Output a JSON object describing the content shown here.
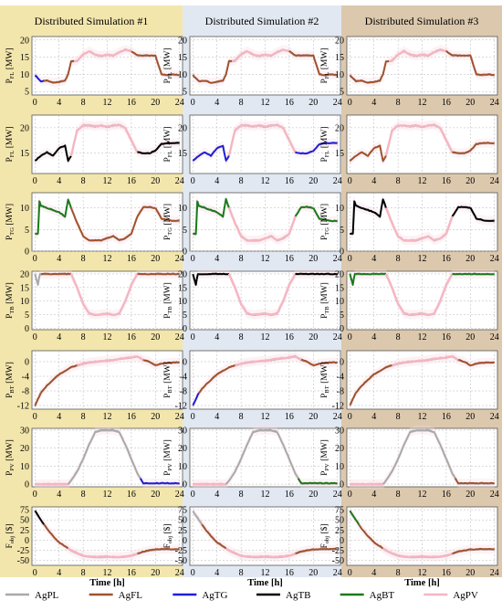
{
  "chart_data": {
    "type": "line",
    "columns": [
      {
        "title": "Distributed Simulation #1",
        "background": "#f3e6ad"
      },
      {
        "title": "Distributed Simulation #2",
        "background": "#e2e8f1"
      },
      {
        "title": "Distributed Simulation #3",
        "background": "#dcc8ad"
      }
    ],
    "xlabel": "Time [h]",
    "xticks": [
      0,
      4,
      8,
      12,
      16,
      20,
      24
    ],
    "xlim": [
      -0.5,
      24.5
    ],
    "grid": true,
    "legend_position": "bottom",
    "legend": [
      {
        "name": "AgPL",
        "color": "#a9a9a9"
      },
      {
        "name": "AgFL",
        "color": "#a0522d"
      },
      {
        "name": "AgTG",
        "color": "#1f1fd6"
      },
      {
        "name": "AgTB",
        "color": "#000000"
      },
      {
        "name": "AgBT",
        "color": "#1a7a1a"
      },
      {
        "name": "AgPV",
        "color": "#f4b6c2"
      }
    ],
    "rows": [
      {
        "ylabel_main": "P",
        "ylabel_sub": "FL",
        "ylabel_unit": " [MW]",
        "ylim": [
          4,
          21
        ],
        "yticks": [
          5,
          10,
          15,
          20
        ],
        "x": [
          0,
          1,
          2,
          3,
          4,
          5,
          5.5,
          6,
          7,
          8,
          9,
          10,
          11,
          12,
          13,
          14,
          15,
          16,
          17,
          18,
          19,
          20,
          21,
          22,
          23,
          24
        ],
        "consensus": [
          9.8,
          8.0,
          8.2,
          7.6,
          7.8,
          8.2,
          10.0,
          13.8,
          14.0,
          15.8,
          16.8,
          15.8,
          15.4,
          15.8,
          15.5,
          16.5,
          17.2,
          16.8,
          15.5,
          15.5,
          15.5,
          15.5,
          10.0,
          9.8,
          10.0,
          9.8
        ],
        "segments": [
          {
            "agents": [
              "AgTG",
              "AgFL",
              "AgFL"
            ],
            "x0": 0,
            "x1": 1.5
          },
          {
            "agents": [
              "AgFL",
              "AgFL",
              "AgFL"
            ],
            "x0": 1.5,
            "x1": 6.5
          },
          {
            "agents": [
              "AgPV",
              "AgPV",
              "AgPV"
            ],
            "x0": 6.5,
            "x1": 16
          },
          {
            "agents": [
              "AgFL",
              "AgFL",
              "AgFL"
            ],
            "x0": 16,
            "x1": 24
          }
        ]
      },
      {
        "ylabel_main": "P",
        "ylabel_sub": "FL",
        "ylabel_unit": " [MW]",
        "ylim": [
          11,
          22.5
        ],
        "yticks": [
          15,
          20
        ],
        "x": [
          0,
          1,
          2,
          3,
          4,
          5,
          5.5,
          6,
          7,
          8,
          9,
          10,
          11,
          12,
          13,
          14,
          15,
          16,
          17,
          18,
          19,
          20,
          21,
          22,
          23,
          24
        ],
        "consensus": [
          13.5,
          14.5,
          15.2,
          14.5,
          16.0,
          16.5,
          13.5,
          14.5,
          19.5,
          20.5,
          20.5,
          20.3,
          20.5,
          20.2,
          20.5,
          20.6,
          20.0,
          17.5,
          15.2,
          15.0,
          15.0,
          15.5,
          16.8,
          17.0,
          17.0,
          17.0
        ],
        "segments": [
          {
            "agents": [
              "AgTB",
              "AgTG",
              "AgFL"
            ],
            "x0": 0,
            "x1": 6
          },
          {
            "agents": [
              "AgPV",
              "AgPV",
              "AgPV"
            ],
            "x0": 6,
            "x1": 17
          },
          {
            "agents": [
              "AgTB",
              "AgTG",
              "AgFL"
            ],
            "x0": 17,
            "x1": 24
          }
        ]
      },
      {
        "ylabel_main": "P",
        "ylabel_sub": "TG",
        "ylabel_unit": " [MW]",
        "ylim": [
          0,
          13.5
        ],
        "yticks": [
          0,
          5,
          10
        ],
        "x": [
          0,
          0.5,
          0.6,
          1,
          2,
          3,
          4,
          5,
          5.5,
          6,
          7,
          8,
          9,
          10,
          11,
          12,
          13,
          14,
          15,
          16,
          17,
          18,
          19,
          20,
          21,
          22,
          23,
          24
        ],
        "consensus": [
          4.0,
          4.0,
          12.0,
          10.5,
          10.0,
          9.5,
          9.0,
          8.0,
          12.0,
          10.0,
          6.5,
          3.5,
          2.5,
          2.5,
          2.5,
          3.0,
          3.5,
          2.5,
          3.0,
          4.0,
          8.0,
          10.2,
          10.2,
          10.0,
          7.5,
          7.2,
          7.0,
          7.0
        ],
        "segments": [
          {
            "agents": [
              "AgBT",
              "AgBT",
              "AgTB"
            ],
            "x0": 0,
            "x1": 6
          },
          {
            "agents": [
              "AgFL",
              "AgPV",
              "AgPV"
            ],
            "x0": 6,
            "x1": 17
          },
          {
            "agents": [
              "AgFL",
              "AgBT",
              "AgTB"
            ],
            "x0": 17,
            "x1": 20
          },
          {
            "agents": [
              "AgFL",
              "AgBT",
              "AgTB"
            ],
            "x0": 20,
            "x1": 24
          }
        ]
      },
      {
        "ylabel_main": "P",
        "ylabel_sub": "TB",
        "ylabel_unit": " [MW]",
        "ylim": [
          -0.5,
          21
        ],
        "yticks": [
          0,
          5,
          10,
          15,
          20
        ],
        "x": [
          0,
          0.5,
          0.8,
          1,
          2,
          3,
          4,
          5,
          6,
          7,
          8,
          9,
          10,
          11,
          12,
          13,
          14,
          15,
          16,
          17,
          18,
          19,
          20,
          21,
          22,
          23,
          24
        ],
        "consensus": [
          20.0,
          16.0,
          20.0,
          20.0,
          20.0,
          20.0,
          20.0,
          20.0,
          20.0,
          15.0,
          9.0,
          5.5,
          5.0,
          5.2,
          5.5,
          5.0,
          5.5,
          10.0,
          16.0,
          20.0,
          20.0,
          20.0,
          20.0,
          20.0,
          20.0,
          20.0,
          20.0
        ],
        "segments": [
          {
            "agents": [
              "AgPL",
              "AgTB",
              "AgBT"
            ],
            "x0": 0,
            "x1": 1
          },
          {
            "agents": [
              "AgFL",
              "AgTB",
              "AgBT"
            ],
            "x0": 1,
            "x1": 6
          },
          {
            "agents": [
              "AgPV",
              "AgPV",
              "AgPV"
            ],
            "x0": 6,
            "x1": 17
          },
          {
            "agents": [
              "AgFL",
              "AgTB",
              "AgBT"
            ],
            "x0": 17,
            "x1": 24
          }
        ]
      },
      {
        "ylabel_main": "P",
        "ylabel_sub": "BT",
        "ylabel_unit": " [MW]",
        "ylim": [
          -13,
          3
        ],
        "yticks": [
          -12,
          -8,
          -4,
          0
        ],
        "x": [
          0,
          1,
          2,
          3,
          4,
          5,
          6,
          7,
          8,
          9,
          10,
          11,
          12,
          13,
          14,
          15,
          16,
          17,
          18,
          19,
          20,
          21,
          22,
          23,
          24
        ],
        "consensus": [
          -12.0,
          -8.5,
          -6.5,
          -5.0,
          -3.5,
          -2.5,
          -1.5,
          -1.0,
          -0.5,
          -0.2,
          0.0,
          0.2,
          0.3,
          0.5,
          0.8,
          1.0,
          1.2,
          1.5,
          0.5,
          0.0,
          -1.0,
          -0.5,
          -0.3,
          -0.2,
          -0.2
        ],
        "segments": [
          {
            "agents": [
              "AgFL",
              "AgTG",
              "AgFL"
            ],
            "x0": 0,
            "x1": 1
          },
          {
            "agents": [
              "AgFL",
              "AgFL",
              "AgFL"
            ],
            "x0": 1,
            "x1": 7
          },
          {
            "agents": [
              "AgPV",
              "AgPV",
              "AgPV"
            ],
            "x0": 7,
            "x1": 18
          },
          {
            "agents": [
              "AgFL",
              "AgFL",
              "AgFL"
            ],
            "x0": 18,
            "x1": 24
          }
        ]
      },
      {
        "ylabel_main": "P",
        "ylabel_sub": "PV",
        "ylabel_unit": " [MW]",
        "ylim": [
          -1.5,
          31
        ],
        "yticks": [
          0,
          10,
          20,
          30
        ],
        "x": [
          0,
          5.5,
          6,
          7,
          8,
          9,
          10,
          11,
          12,
          13,
          14,
          15,
          16,
          17,
          18,
          24
        ],
        "consensus": [
          0,
          0,
          2.0,
          7.0,
          14.0,
          22.0,
          29.0,
          30.0,
          30.0,
          30.0,
          29.0,
          22.0,
          14.0,
          6.0,
          0.5,
          0.5
        ],
        "segments": [
          {
            "agents": [
              "AgPV",
              "AgPV",
              "AgPV"
            ],
            "x0": 0,
            "x1": 5.5
          },
          {
            "agents": [
              "AgPL",
              "AgPL",
              "AgPL"
            ],
            "x0": 5.5,
            "x1": 17.5
          },
          {
            "agents": [
              "AgTG",
              "AgBT",
              "AgFL"
            ],
            "x0": 17.5,
            "x1": 24
          }
        ]
      },
      {
        "ylabel_main": "F",
        "ylabel_sub": "obj",
        "ylabel_unit": " [$]",
        "ylim": [
          -62,
          82
        ],
        "yticks": [
          -50,
          -25,
          0,
          25,
          50,
          75
        ],
        "x": [
          0,
          1,
          2,
          3,
          4,
          5,
          6,
          7,
          8,
          9,
          10,
          11,
          12,
          13,
          14,
          15,
          16,
          17,
          18,
          19,
          20,
          21,
          22,
          23,
          24
        ],
        "consensus": [
          72,
          50,
          28,
          10,
          -5,
          -15,
          -25,
          -32,
          -38,
          -40,
          -41,
          -41,
          -40,
          -41,
          -41,
          -40,
          -38,
          -33,
          -28,
          -25,
          -23,
          -22,
          -22,
          -22,
          -22
        ],
        "segments": [
          {
            "agents": [
              "AgTB",
              "AgPL",
              "AgBT"
            ],
            "x0": 0,
            "x1": 1.5
          },
          {
            "agents": [
              "AgFL",
              "AgFL",
              "AgFL"
            ],
            "x0": 1.5,
            "x1": 5.5
          },
          {
            "agents": [
              "AgPV",
              "AgPV",
              "AgPV"
            ],
            "x0": 5.5,
            "x1": 17
          },
          {
            "agents": [
              "AgFL",
              "AgFL",
              "AgFL"
            ],
            "x0": 17,
            "x1": 24
          }
        ]
      }
    ]
  }
}
